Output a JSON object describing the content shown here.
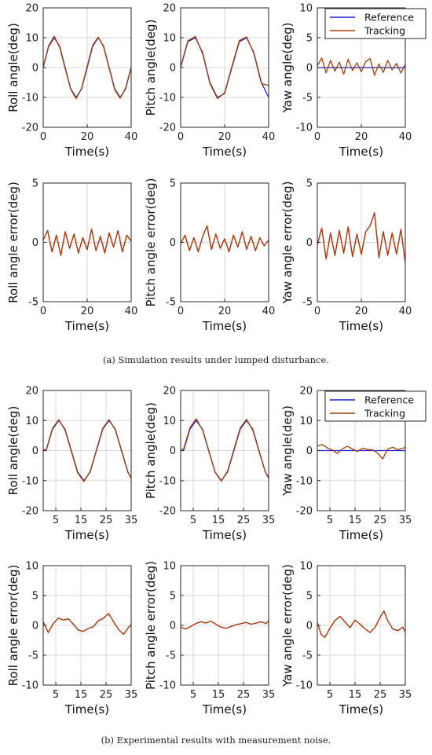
{
  "captions": {
    "a": "(a)  Simulation results under lumped disturbance.",
    "b": "(b)  Experimental results with measurement noise."
  },
  "colors": {
    "reference": "#1f1fd0",
    "tracking": "#a0400a",
    "error": "#d21f1f"
  },
  "chart_data": [
    {
      "type": "line",
      "id": "a-roll",
      "xlabel": "Time(s)",
      "ylabel": "Roll angle(deg)",
      "xlim": [
        0,
        40
      ],
      "ylim": [
        -20,
        20
      ],
      "xticks": [
        0,
        20,
        40
      ],
      "yticks": [
        -20,
        -10,
        0,
        10,
        20
      ],
      "grid": true,
      "legend": null,
      "series": [
        {
          "name": "Reference",
          "x": [
            0,
            2.5,
            5,
            7.5,
            10,
            12.5,
            15,
            17.5,
            20,
            22.5,
            25,
            27.5,
            30,
            32.5,
            35,
            37.5,
            40
          ],
          "y": [
            0,
            7.1,
            10,
            7.1,
            0,
            -7.1,
            -10,
            -7.1,
            0,
            7.1,
            10,
            7.1,
            0,
            -7.1,
            -10,
            -7.1,
            0
          ]
        },
        {
          "name": "Tracking",
          "x": [
            0,
            2.5,
            5,
            7.5,
            10,
            12.5,
            15,
            17.5,
            20,
            22.5,
            25,
            27.5,
            30,
            32.5,
            35,
            37.5,
            40
          ],
          "y": [
            0.3,
            7.4,
            10.5,
            6.8,
            -0.4,
            -7.3,
            -10.4,
            -6.9,
            0.5,
            7.5,
            10.2,
            6.9,
            -0.3,
            -7.4,
            -10.3,
            -6.8,
            0.2
          ]
        }
      ]
    },
    {
      "type": "line",
      "id": "a-pitch",
      "xlabel": "Time(s)",
      "ylabel": "Pitch angle(deg)",
      "xlim": [
        0,
        40
      ],
      "ylim": [
        -20,
        20
      ],
      "xticks": [
        0,
        20,
        40
      ],
      "yticks": [
        -20,
        -10,
        0,
        10,
        20
      ],
      "grid": true,
      "legend": null,
      "series": [
        {
          "name": "Reference",
          "x": [
            0,
            3.3,
            6.7,
            10,
            13.3,
            16.7,
            20,
            23.3,
            26.7,
            30,
            33.3,
            36.7,
            40
          ],
          "y": [
            0,
            8.7,
            10,
            5,
            -5,
            -10,
            -8.7,
            0,
            8.7,
            10,
            5,
            -5,
            -10
          ]
        },
        {
          "name": "Tracking",
          "x": [
            0,
            3.3,
            6.7,
            10,
            13.3,
            16.7,
            20,
            23.3,
            26.7,
            30,
            33.3,
            36.7,
            40
          ],
          "y": [
            0.3,
            9,
            10.4,
            4.6,
            -5.3,
            -10.4,
            -8.4,
            0.4,
            9.1,
            10.3,
            4.7,
            -5.4,
            -6
          ]
        }
      ]
    },
    {
      "type": "line",
      "id": "a-yaw",
      "xlabel": "Time(s)",
      "ylabel": "Yaw angle(deg)",
      "xlim": [
        0,
        40
      ],
      "ylim": [
        -10,
        10
      ],
      "xticks": [
        0,
        20,
        40
      ],
      "yticks": [
        -10,
        -5,
        0,
        5,
        10
      ],
      "grid": true,
      "legend": "top-right",
      "series": [
        {
          "name": "Reference",
          "x": [
            0,
            40
          ],
          "y": [
            0,
            0
          ]
        },
        {
          "name": "Tracking",
          "x": [
            0,
            2,
            4,
            6,
            8,
            10,
            12,
            14,
            16,
            18,
            20,
            22,
            24,
            26,
            28,
            30,
            32,
            34,
            36,
            38,
            40
          ],
          "y": [
            0.3,
            1.6,
            -0.9,
            1.2,
            -0.6,
            0.9,
            -1.1,
            1.4,
            -0.5,
            0.8,
            -0.7,
            1.0,
            1.5,
            -1.3,
            0.6,
            -0.8,
            1.2,
            -0.4,
            0.7,
            -0.9,
            0.5
          ]
        }
      ]
    },
    {
      "type": "line",
      "id": "a-roll-err",
      "xlabel": "Time(s)",
      "ylabel": "Roll angle error(deg)",
      "xlim": [
        0,
        40
      ],
      "ylim": [
        -5,
        5
      ],
      "xticks": [
        0,
        20,
        40
      ],
      "yticks": [
        -5,
        0,
        5
      ],
      "grid": true,
      "legend": null,
      "series": [
        {
          "name": "",
          "x": [
            0,
            2,
            4,
            6,
            8,
            10,
            12,
            14,
            16,
            18,
            20,
            22,
            24,
            26,
            28,
            30,
            32,
            34,
            36,
            38,
            40
          ],
          "y": [
            0.2,
            1.0,
            -0.8,
            0.6,
            -1.1,
            0.9,
            -0.5,
            0.7,
            -0.9,
            0.4,
            -0.6,
            1.1,
            -0.7,
            0.5,
            -0.9,
            0.8,
            -0.4,
            1.0,
            -0.8,
            0.6,
            0.1
          ]
        }
      ]
    },
    {
      "type": "line",
      "id": "a-pitch-err",
      "xlabel": "Time(s)",
      "ylabel": "Pitch angle error(deg)",
      "xlim": [
        0,
        40
      ],
      "ylim": [
        -5,
        5
      ],
      "xticks": [
        0,
        20,
        40
      ],
      "yticks": [
        -5,
        0,
        5
      ],
      "grid": true,
      "legend": null,
      "series": [
        {
          "name": "",
          "x": [
            0,
            2,
            4,
            6,
            8,
            10,
            12,
            14,
            16,
            18,
            20,
            22,
            24,
            26,
            28,
            30,
            32,
            34,
            36,
            38,
            40
          ],
          "y": [
            -0.1,
            0.6,
            -0.7,
            0.4,
            -0.8,
            0.5,
            1.4,
            -0.6,
            0.7,
            -0.5,
            0.3,
            -0.8,
            0.6,
            -0.4,
            0.9,
            -0.6,
            0.5,
            -0.7,
            0.4,
            -0.3,
            0.2
          ]
        }
      ]
    },
    {
      "type": "line",
      "id": "a-yaw-err",
      "xlabel": "Time(s)",
      "ylabel": "Yaw angle error(deg)",
      "xlim": [
        0,
        40
      ],
      "ylim": [
        -5,
        5
      ],
      "xticks": [
        0,
        20,
        40
      ],
      "yticks": [
        -5,
        0,
        5
      ],
      "grid": true,
      "legend": null,
      "series": [
        {
          "name": "",
          "x": [
            0,
            2,
            4,
            6,
            8,
            10,
            12,
            14,
            16,
            18,
            20,
            22,
            24,
            26,
            28,
            30,
            32,
            34,
            36,
            38,
            40
          ],
          "y": [
            -0.2,
            1.2,
            -1.4,
            0.8,
            -1.1,
            1.0,
            -0.9,
            1.3,
            -1.2,
            0.7,
            -1.0,
            0.9,
            1.4,
            2.5,
            -1.3,
            0.9,
            -1.1,
            0.8,
            -1.0,
            1.1,
            -1.7
          ]
        }
      ]
    },
    {
      "type": "line",
      "id": "b-roll",
      "xlabel": "Time(s)",
      "ylabel": "Roll angle(deg)",
      "xlim": [
        0,
        35
      ],
      "ylim": [
        -20,
        20
      ],
      "xticks": [
        5,
        15,
        25,
        35
      ],
      "yticks": [
        -20,
        -10,
        0,
        10,
        20
      ],
      "grid": true,
      "legend": null,
      "series": [
        {
          "name": "Reference",
          "x": [
            0,
            1.2,
            3.7,
            6.2,
            8.7,
            11.2,
            13.7,
            16.2,
            18.7,
            21.2,
            23.7,
            26.2,
            28.7,
            31.2,
            33.7,
            35
          ],
          "y": [
            0,
            0,
            7.1,
            10,
            7.1,
            0,
            -7.1,
            -10,
            -7.1,
            0,
            7.1,
            10,
            7.1,
            0,
            -7.1,
            -9.2
          ]
        },
        {
          "name": "Tracking",
          "x": [
            0,
            1.2,
            3.7,
            6.2,
            8.7,
            11.2,
            13.7,
            16.2,
            18.7,
            21.2,
            23.7,
            26.2,
            28.7,
            31.2,
            33.7,
            35
          ],
          "y": [
            0.3,
            0.2,
            7.4,
            10.3,
            6.8,
            -0.3,
            -7.4,
            -10.3,
            -6.9,
            0.3,
            7.4,
            10.3,
            6.9,
            -0.2,
            -7.3,
            -9.0
          ]
        }
      ]
    },
    {
      "type": "line",
      "id": "b-pitch",
      "xlabel": "Time(s)",
      "ylabel": "Pitch angle(deg)",
      "xlim": [
        0,
        35
      ],
      "ylim": [
        -20,
        20
      ],
      "xticks": [
        5,
        15,
        25,
        35
      ],
      "yticks": [
        -20,
        -10,
        0,
        10,
        20
      ],
      "grid": true,
      "legend": null,
      "series": [
        {
          "name": "Reference",
          "x": [
            0,
            1.2,
            3.7,
            6.2,
            8.7,
            11.2,
            13.7,
            16.2,
            18.7,
            21.2,
            23.7,
            26.2,
            28.7,
            31.2,
            33.7,
            35
          ],
          "y": [
            0,
            0,
            7.1,
            10,
            7.1,
            0,
            -7.1,
            -10,
            -7.1,
            0,
            7.1,
            10,
            7.1,
            0,
            -7.1,
            -9.2
          ]
        },
        {
          "name": "Tracking",
          "x": [
            0,
            1.2,
            3.7,
            6.2,
            8.7,
            11.2,
            13.7,
            16.2,
            18.7,
            21.2,
            23.7,
            26.2,
            28.7,
            31.2,
            33.7,
            35
          ],
          "y": [
            0.4,
            0.5,
            7.6,
            10.6,
            6.9,
            -0.2,
            -7.2,
            -10.2,
            -6.8,
            0.4,
            7.5,
            10.4,
            6.8,
            -0.3,
            -7.2,
            -8.9
          ]
        }
      ]
    },
    {
      "type": "line",
      "id": "b-yaw",
      "xlabel": "Time(s)",
      "ylabel": "Yaw angle(deg)",
      "xlim": [
        0,
        35
      ],
      "ylim": [
        -20,
        20
      ],
      "xticks": [
        5,
        15,
        25,
        35
      ],
      "yticks": [
        -20,
        -10,
        0,
        10,
        20
      ],
      "grid": true,
      "legend": "top-right",
      "series": [
        {
          "name": "Reference",
          "x": [
            0,
            35
          ],
          "y": [
            0,
            0
          ]
        },
        {
          "name": "Tracking",
          "x": [
            0,
            2,
            4,
            6,
            8,
            10,
            12,
            14,
            16,
            18,
            20,
            22,
            24,
            26,
            28,
            30,
            32,
            34,
            35
          ],
          "y": [
            1.5,
            2.0,
            0.9,
            0.2,
            -1.0,
            0.6,
            1.4,
            0.5,
            -0.3,
            0.8,
            0.4,
            0.2,
            -0.8,
            -2.8,
            0.5,
            1.1,
            0.3,
            0.8,
            1.0
          ]
        }
      ]
    },
    {
      "type": "line",
      "id": "b-roll-err",
      "xlabel": "Time(s)",
      "ylabel": "Roll angle error(deg)",
      "xlim": [
        0,
        35
      ],
      "ylim": [
        -10,
        10
      ],
      "xticks": [
        5,
        15,
        25,
        35
      ],
      "yticks": [
        -10,
        -5,
        0,
        5,
        10
      ],
      "grid": true,
      "legend": null,
      "series": [
        {
          "name": "",
          "x": [
            0,
            2,
            4,
            6,
            8,
            10,
            12,
            14,
            16,
            18,
            20,
            22,
            24,
            26,
            28,
            30,
            32,
            34,
            35
          ],
          "y": [
            0.6,
            -1.2,
            0.3,
            1.2,
            0.9,
            1.1,
            0.2,
            -0.8,
            -1.0,
            -0.5,
            -0.2,
            0.8,
            1.2,
            2.0,
            0.6,
            -0.7,
            -1.5,
            -0.3,
            0.1
          ]
        }
      ]
    },
    {
      "type": "line",
      "id": "b-pitch-err",
      "xlabel": "Time(s)",
      "ylabel": "Pitch angle error(deg)",
      "xlim": [
        0,
        35
      ],
      "ylim": [
        -10,
        10
      ],
      "xticks": [
        5,
        15,
        25,
        35
      ],
      "yticks": [
        -10,
        -5,
        0,
        5,
        10
      ],
      "grid": true,
      "legend": null,
      "series": [
        {
          "name": "",
          "x": [
            0,
            2,
            4,
            6,
            8,
            10,
            12,
            14,
            16,
            18,
            20,
            22,
            24,
            26,
            28,
            30,
            32,
            34,
            35
          ],
          "y": [
            -0.3,
            -0.6,
            -0.2,
            0.3,
            0.6,
            0.4,
            0.7,
            0.2,
            -0.3,
            -0.5,
            -0.2,
            0.1,
            0.3,
            0.5,
            0.2,
            0.4,
            0.6,
            0.3,
            0.8
          ]
        }
      ]
    },
    {
      "type": "line",
      "id": "b-yaw-err",
      "xlabel": "Time(s)",
      "ylabel": "Yaw angle error(deg)",
      "xlim": [
        0,
        35
      ],
      "ylim": [
        -10,
        10
      ],
      "xticks": [
        5,
        15,
        25,
        35
      ],
      "yticks": [
        -10,
        -5,
        0,
        5,
        10
      ],
      "grid": true,
      "legend": null,
      "series": [
        {
          "name": "",
          "x": [
            0,
            1.5,
            3,
            5,
            7,
            9,
            11,
            13,
            15,
            17,
            19,
            21,
            23,
            25,
            26.5,
            28,
            30,
            32,
            34,
            35
          ],
          "y": [
            0.5,
            -1.5,
            -2.0,
            -0.5,
            0.8,
            1.5,
            0.6,
            -0.4,
            0.9,
            0.2,
            -0.6,
            -1.2,
            -0.3,
            1.4,
            2.4,
            0.8,
            -0.6,
            -0.9,
            -0.3,
            -1.1
          ]
        }
      ]
    }
  ]
}
